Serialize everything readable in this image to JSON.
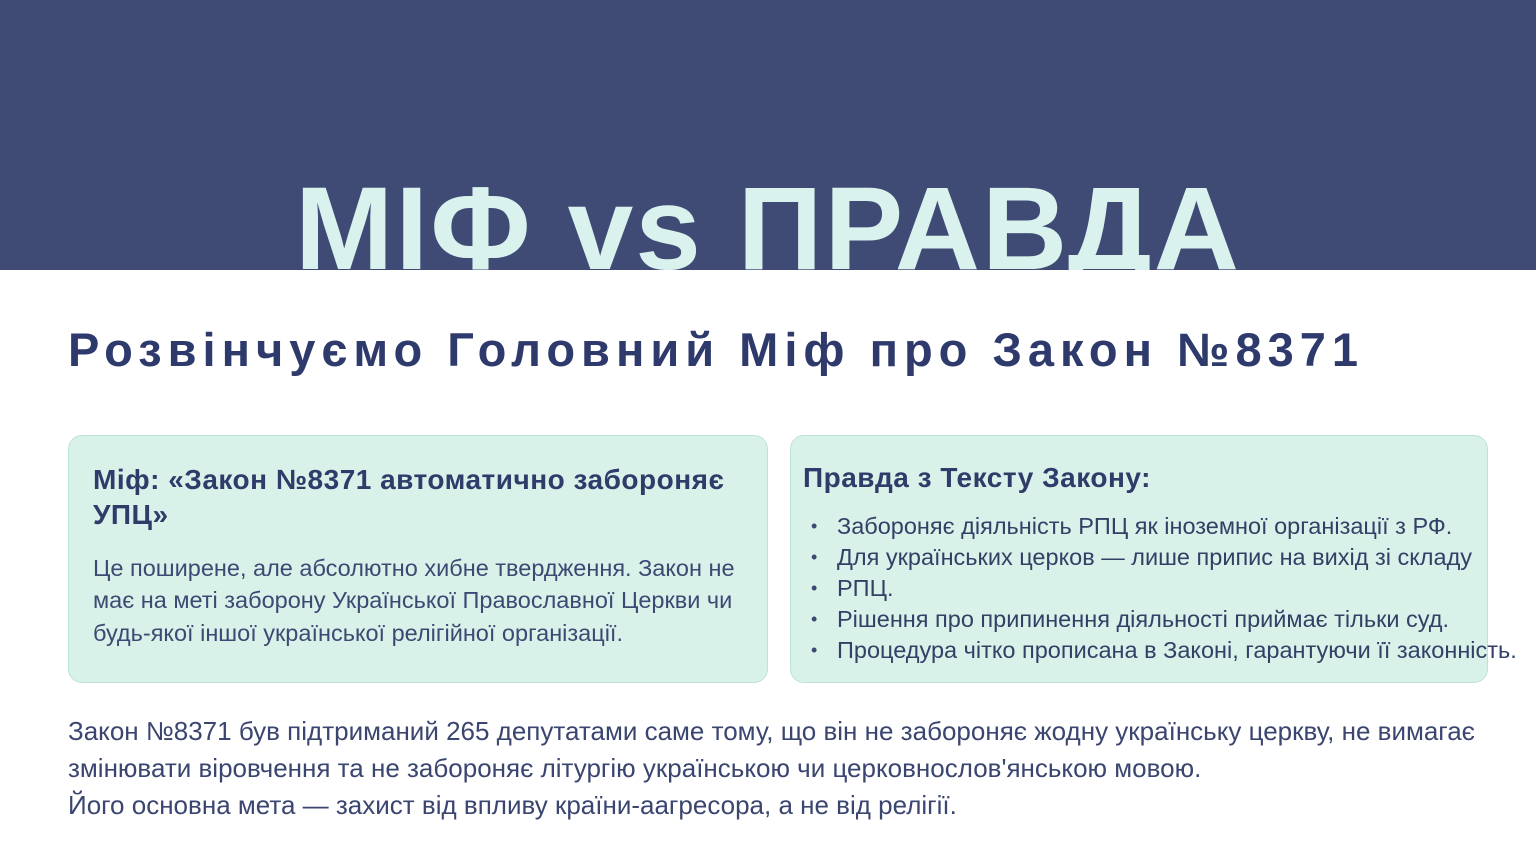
{
  "banner": {
    "title": "МІФ vs ПРАВДА"
  },
  "heading": "Розвінчуємо Головний Міф про Закон №8371",
  "myth_card": {
    "title": "Міф: «Закон №8371 автоматично забороняє УПЦ»",
    "body": "Це поширене, але абсолютно хибне твердження. Закон не має на меті заборону Української Православної Церкви чи будь-якої іншої української релігійної організації."
  },
  "truth_card": {
    "title": "Правда з Тексту Закону:",
    "bullets": [
      "Забороняє діяльність РПЦ як іноземної організації з РФ.",
      "Для українських церков — лише припис на вихід зі складу",
      "РПЦ.",
      "Рішення про припинення діяльності приймає тільки суд.",
      "Процедура чітко прописана в Законі, гарантуючи її законність."
    ]
  },
  "footer": {
    "line1": "Закон №8371 був підтриманий 265 депутатами саме тому, що він не забороняє жодну українську церкву, не вимагає змінювати віровчення та не забороняє літургію українською чи церковнослов'янською  мовою.",
    "line2": "Його основна мета — захист від впливу країни-аагресора, а не від релігії."
  },
  "colors": {
    "banner_bg": "#3F4B75",
    "banner_text": "#D9F2EE",
    "heading_text": "#2E3A6B",
    "card_bg": "#D8F2EA",
    "card_border": "#BEE2D9",
    "card_title": "#2F3B69",
    "body_text": "#3C4973"
  }
}
